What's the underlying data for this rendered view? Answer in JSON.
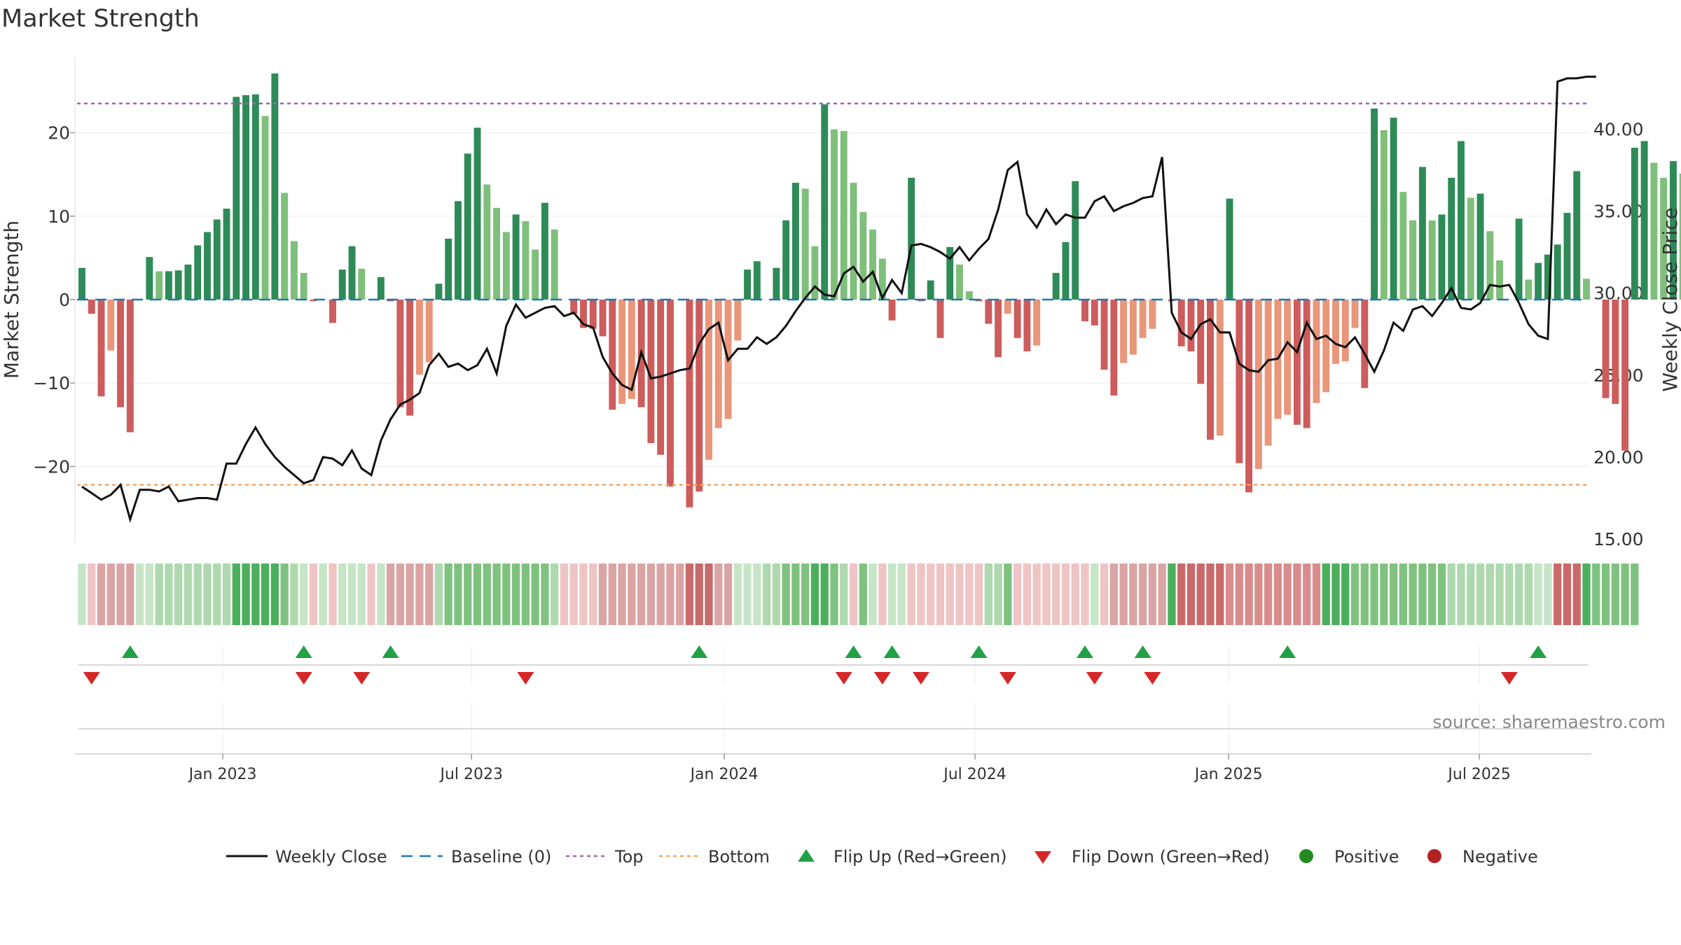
{
  "title": "Market Strength",
  "source": "source: sharemaestro.com",
  "colors": {
    "bar_pos_dark": "#2e8b57",
    "bar_pos_light": "#7fbf7b",
    "bar_neg_dark": "#cd5c5c",
    "bar_neg_light": "#e9967a",
    "line": "#111111",
    "baseline": "#1f77b4",
    "top": "#9467bd",
    "bottom": "#f4a460",
    "flip_up": "#22a045",
    "flip_down": "#d62728",
    "positive": "#228b22",
    "negative": "#b22222"
  },
  "chart_data": {
    "type": "bar+line",
    "title": "Market Strength",
    "ylabel_left": "Market Strength",
    "ylabel_right": "Weekly Close Price",
    "left_ticks": [
      -20,
      -10,
      0,
      10,
      20
    ],
    "left_tick_labels": [
      "−20",
      "−10",
      "0",
      "10",
      "20"
    ],
    "right_ticks": [
      15,
      20,
      25,
      30,
      35,
      40
    ],
    "right_tick_labels": [
      "15.00",
      "20.00",
      "25.00",
      "30.00",
      "35.00",
      "40.00"
    ],
    "top_line": 23.5,
    "bottom_line": -22.2,
    "x_tick_labels": [
      "Jan 2023",
      "Jul 2023",
      "Jan 2024",
      "Jul 2024",
      "Jan 2025",
      "Jul 2025"
    ],
    "x_tick_weeks": [
      14.6,
      40.4,
      66.6,
      92.6,
      118.9,
      144.9
    ],
    "weeks": 157,
    "strength": [
      3.8,
      -1.7,
      -11.6,
      -6.1,
      -12.9,
      -15.9,
      0,
      5.1,
      3.4,
      3.4,
      3.5,
      4.2,
      6.5,
      8.1,
      9.6,
      10.9,
      24.3,
      24.5,
      24.6,
      22,
      27.1,
      12.8,
      7,
      3.2,
      -0.2,
      0,
      -2.8,
      3.6,
      6.4,
      3.7,
      0,
      2.7,
      -0.2,
      -12.9,
      -13.9,
      -9,
      -7.5,
      1.9,
      7.3,
      11.8,
      17.5,
      20.6,
      13.8,
      11,
      8.1,
      10.2,
      9.4,
      6,
      11.6,
      8.4,
      0,
      -1.7,
      -3.4,
      -3.5,
      -4.4,
      -13.2,
      -12.5,
      -11.9,
      -12.9,
      -17.2,
      -18.6,
      -22.4,
      0,
      -24.9,
      -23,
      -19.2,
      -15.4,
      -14.3,
      -4.9,
      3.6,
      4.6,
      0,
      3.8,
      9.5,
      14,
      13.3,
      6.4,
      23.4,
      20.4,
      20.2,
      14,
      10.5,
      8.4,
      4.9,
      -2.5,
      0,
      14.6,
      -0.2,
      2.3,
      -4.6,
      6.3,
      4.2,
      1,
      -0.2,
      -2.9,
      -6.9,
      -1.7,
      -4.6,
      -6.2,
      -5.5,
      0,
      3.2,
      6.9,
      14.2,
      -2.6,
      -3.1,
      -8.4,
      -11.5,
      -7.6,
      -6.6,
      -4.6,
      -3.5,
      0,
      -0.2,
      -5.6,
      -6.2,
      -10.1,
      -16.8,
      -16.3,
      12.1,
      -19.6,
      -23.1,
      -20.3,
      -17.5,
      -14.3,
      -13.8,
      -15,
      -15.4,
      -12.4,
      -11.1,
      -7.7,
      -7.4,
      -3.4,
      -10.6,
      22.9,
      20.3,
      21.8,
      12.9,
      9.5,
      15.9,
      9.5,
      10.2,
      14.6,
      19,
      12.2,
      12.7,
      8.2,
      4.7,
      0,
      9.7,
      2.4,
      4.4,
      5.4,
      6.6,
      10.4,
      15.4,
      2.5,
      0,
      -11.8,
      -12.5,
      -18.1,
      18.2,
      19,
      16.4,
      14.6,
      16.6,
      15.1
    ],
    "close": [
      18.2,
      17.8,
      17.4,
      17.7,
      18.3,
      16.2,
      18,
      18,
      17.9,
      18.2,
      17.3,
      17.4,
      17.5,
      17.5,
      17.4,
      19.6,
      19.6,
      20.8,
      21.8,
      20.8,
      20,
      19.4,
      18.9,
      18.4,
      18.6,
      20,
      19.9,
      19.5,
      20.4,
      19.3,
      18.9,
      21,
      22.3,
      23.2,
      23.5,
      23.9,
      25.6,
      26.3,
      25.5,
      25.7,
      25.3,
      25.6,
      26.6,
      25.1,
      28,
      29.3,
      28.5,
      28.8,
      29.1,
      29.2,
      28.6,
      28.8,
      28.1,
      27.9,
      26.1,
      25.1,
      24.4,
      24.1,
      26.4,
      24.8,
      24.9,
      25.1,
      25.3,
      25.4,
      26.9,
      27.8,
      28.2,
      25.9,
      26.6,
      26.6,
      27.3,
      26.9,
      27.3,
      28,
      28.9,
      29.7,
      30.4,
      29.9,
      29.8,
      31.2,
      31.6,
      30.7,
      31.3,
      29.7,
      30.8,
      30,
      32.9,
      33,
      32.8,
      32.5,
      32.1,
      32.8,
      32,
      32.7,
      33.3,
      35.1,
      37.5,
      38,
      34.8,
      34,
      35.1,
      34.2,
      34.8,
      34.6,
      34.6,
      35.6,
      35.9,
      35,
      35.3,
      35.5,
      35.8,
      35.9,
      38.3,
      28.8,
      27.6,
      27.2,
      28.1,
      28.4,
      27.6,
      27.6,
      25.7,
      25.3,
      25.2,
      25.9,
      26,
      27,
      26.4,
      28.2,
      27.2,
      27.4,
      26.9,
      26.7,
      27.3,
      26.3,
      25.2,
      26.5,
      28.2,
      27.7,
      29,
      29.2,
      28.6,
      29.4,
      30.3,
      29.1,
      29,
      29.4,
      30.5,
      30.4,
      30.5,
      29.4,
      28.1,
      27.4,
      27.2,
      42.9,
      43.1,
      43.1,
      43.2,
      43.2
    ],
    "flip_up_weeks": [
      5,
      23,
      32,
      64,
      80,
      84,
      93,
      104,
      110,
      125,
      151
    ],
    "flip_down_weeks": [
      1,
      23,
      29,
      46,
      79,
      83,
      87,
      96,
      105,
      111,
      148
    ],
    "regime_colors": [
      "#c6e5c6",
      "#eec4c4",
      "#daa4a4",
      "#daa4a4",
      "#daa4a4",
      "#daa4a4",
      "#c6e5c6",
      "#c6e5c6",
      "#aed9ae",
      "#aed9ae",
      "#aed9ae",
      "#aed9ae",
      "#aed9ae",
      "#aed9ae",
      "#aed9ae",
      "#aed9ae",
      "#4caf5c",
      "#4caf5c",
      "#4caf5c",
      "#4caf5c",
      "#4caf5c",
      "#7fc27f",
      "#aed9ae",
      "#c6e5c6",
      "#eec4c4",
      "#c6e5c6",
      "#eec4c4",
      "#c6e5c6",
      "#c6e5c6",
      "#c6e5c6",
      "#eec4c4",
      "#c6e5c6",
      "#daa4a4",
      "#daa4a4",
      "#daa4a4",
      "#daa4a4",
      "#daa4a4",
      "#aed9ae",
      "#7fc27f",
      "#7fc27f",
      "#7fc27f",
      "#7fc27f",
      "#7fc27f",
      "#7fc27f",
      "#7fc27f",
      "#7fc27f",
      "#7fc27f",
      "#7fc27f",
      "#7fc27f",
      "#aed9ae",
      "#eec4c4",
      "#eec4c4",
      "#eec4c4",
      "#eec4c4",
      "#daa4a4",
      "#daa4a4",
      "#daa4a4",
      "#daa4a4",
      "#daa4a4",
      "#daa4a4",
      "#daa4a4",
      "#daa4a4",
      "#daa4a4",
      "#c96a6a",
      "#c96a6a",
      "#c96a6a",
      "#daa4a4",
      "#daa4a4",
      "#c6e5c6",
      "#c6e5c6",
      "#c6e5c6",
      "#aed9ae",
      "#aed9ae",
      "#7fc27f",
      "#7fc27f",
      "#7fc27f",
      "#4caf5c",
      "#4caf5c",
      "#7fc27f",
      "#aed9ae",
      "#eec4c4",
      "#7fc27f",
      "#c6e5c6",
      "#eec4c4",
      "#c6e5c6",
      "#c6e5c6",
      "#eec4c4",
      "#eec4c4",
      "#eec4c4",
      "#eec4c4",
      "#eec4c4",
      "#eec4c4",
      "#eec4c4",
      "#eec4c4",
      "#aed9ae",
      "#aed9ae",
      "#7fc27f",
      "#eec4c4",
      "#eec4c4",
      "#eec4c4",
      "#eec4c4",
      "#eec4c4",
      "#eec4c4",
      "#eec4c4",
      "#eec4c4",
      "#c6e5c6",
      "#eec4c4",
      "#daa4a4",
      "#daa4a4",
      "#daa4a4",
      "#daa4a4",
      "#daa4a4",
      "#daa4a4",
      "#4caf5c",
      "#c96a6a",
      "#c96a6a",
      "#c96a6a",
      "#c96a6a",
      "#c96a6a",
      "#d98c8c",
      "#d98c8c",
      "#d98c8c",
      "#d98c8c",
      "#d98c8c",
      "#d98c8c",
      "#d98c8c",
      "#d98c8c",
      "#d98c8c",
      "#d98c8c",
      "#4caf5c",
      "#4caf5c",
      "#4caf5c",
      "#7fc27f",
      "#7fc27f",
      "#7fc27f",
      "#7fc27f",
      "#7fc27f",
      "#7fc27f",
      "#7fc27f",
      "#7fc27f",
      "#7fc27f",
      "#7fc27f",
      "#aed9ae",
      "#aed9ae",
      "#aed9ae",
      "#aed9ae",
      "#aed9ae",
      "#aed9ae",
      "#aed9ae",
      "#aed9ae",
      "#aed9ae",
      "#c6e5c6",
      "#c6e5c6",
      "#c96a6a",
      "#c96a6a",
      "#c96a6a",
      "#4caf5c",
      "#7fc27f",
      "#7fc27f",
      "#7fc27f",
      "#7fc27f",
      "#7fc27f"
    ],
    "legend": [
      "Weekly Close",
      "Baseline (0)",
      "Top",
      "Bottom",
      "Flip Up (Red→Green)",
      "Flip Down (Green→Red)",
      "Positive",
      "Negative"
    ]
  }
}
